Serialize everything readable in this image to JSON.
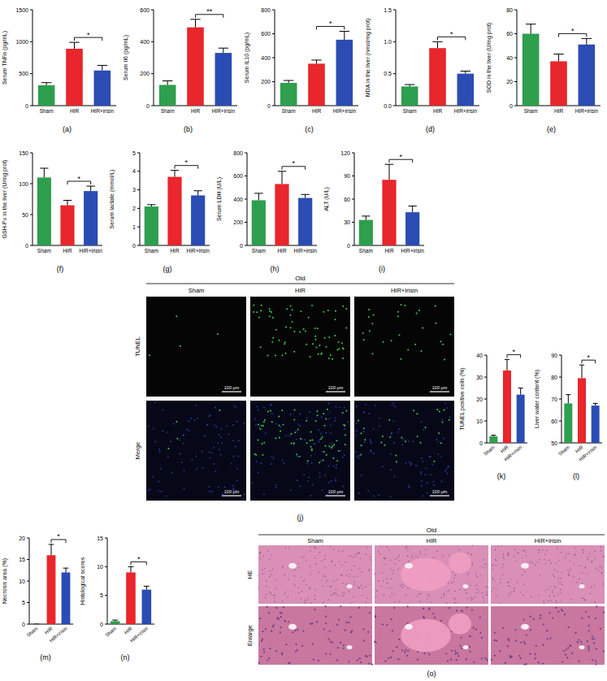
{
  "chart_data": [
    {
      "type": "bar",
      "caption": "(a)",
      "y_label": "Serum TNFα (pg/mL)",
      "categories": [
        "Sham",
        "HIR",
        "HIR+irisin"
      ],
      "values": [
        320,
        890,
        550
      ],
      "errors": [
        40,
        100,
        80
      ],
      "colors": [
        "#2e9e4f",
        "#e8262b",
        "#2b4cb3"
      ],
      "ylim": [
        0,
        1500
      ],
      "yticks": [
        0,
        500,
        1000,
        1500
      ],
      "annotations": [
        {
          "text": "*",
          "between": [
            1,
            2
          ]
        }
      ]
    },
    {
      "type": "bar",
      "caption": "(b)",
      "y_label": "Serum Il6 (pg/mL)",
      "categories": [
        "Sham",
        "HIR",
        "HIR+irisin"
      ],
      "values": [
        130,
        490,
        330
      ],
      "errors": [
        25,
        50,
        30
      ],
      "colors": [
        "#2e9e4f",
        "#e8262b",
        "#2b4cb3"
      ],
      "ylim": [
        0,
        600
      ],
      "yticks": [
        0,
        200,
        400,
        600
      ],
      "annotations": [
        {
          "text": "**",
          "between": [
            1,
            2
          ]
        }
      ]
    },
    {
      "type": "bar",
      "caption": "(c)",
      "y_label": "Serum IL10 (pg/mL)",
      "categories": [
        "Sham",
        "HIR",
        "HIR+irisin"
      ],
      "values": [
        190,
        350,
        550
      ],
      "errors": [
        20,
        30,
        70
      ],
      "colors": [
        "#2e9e4f",
        "#e8262b",
        "#2b4cb3"
      ],
      "ylim": [
        0,
        800
      ],
      "yticks": [
        0,
        200,
        400,
        600,
        800
      ],
      "annotations": [
        {
          "text": "*",
          "between": [
            1,
            2
          ]
        }
      ]
    },
    {
      "type": "bar",
      "caption": "(d)",
      "y_label": "MDA in the liver (nmol/mg prot)",
      "categories": [
        "Sham",
        "HIR",
        "HIR+irisin"
      ],
      "values": [
        0.3,
        0.9,
        0.5
      ],
      "errors": [
        0.03,
        0.1,
        0.04
      ],
      "colors": [
        "#2e9e4f",
        "#e8262b",
        "#2b4cb3"
      ],
      "ylim": [
        0,
        1.5
      ],
      "yticks": [
        {
          "value": 0,
          "label": "0.0"
        },
        0.5,
        {
          "value": 1,
          "label": "1.0"
        },
        1.5
      ],
      "annotations": [
        {
          "text": "*",
          "between": [
            1,
            2
          ]
        }
      ]
    },
    {
      "type": "bar",
      "caption": "(e)",
      "y_label": "SOD in the liver (U/mg prot)",
      "categories": [
        "Sham",
        "HIR",
        "HIR+irisin"
      ],
      "values": [
        60,
        37,
        51
      ],
      "errors": [
        8,
        6,
        5
      ],
      "colors": [
        "#2e9e4f",
        "#e8262b",
        "#2b4cb3"
      ],
      "ylim": [
        0,
        80
      ],
      "yticks": [
        0,
        20,
        40,
        60,
        80
      ],
      "annotations": [
        {
          "text": "*",
          "between": [
            1,
            2
          ]
        }
      ]
    },
    {
      "type": "bar",
      "caption": "(f)",
      "y_label": "GSH-Px in the liver (U/mg prot)",
      "categories": [
        "Sham",
        "HIR",
        "HIR+irisin"
      ],
      "values": [
        110,
        65,
        88
      ],
      "errors": [
        15,
        8,
        8
      ],
      "colors": [
        "#2e9e4f",
        "#e8262b",
        "#2b4cb3"
      ],
      "ylim": [
        0,
        150
      ],
      "yticks": [
        0,
        50,
        100,
        150
      ],
      "annotations": [
        {
          "text": "*",
          "between": [
            1,
            2
          ]
        }
      ]
    },
    {
      "type": "bar",
      "caption": "(g)",
      "y_label": "Serum lactate (mmol/L)",
      "categories": [
        "Sham",
        "HIR",
        "HIR+irisin"
      ],
      "values": [
        2.1,
        3.7,
        2.7
      ],
      "errors": [
        0.1,
        0.35,
        0.25
      ],
      "colors": [
        "#2e9e4f",
        "#e8262b",
        "#2b4cb3"
      ],
      "ylim": [
        0,
        5
      ],
      "yticks": [
        0,
        1,
        2,
        3,
        4,
        5
      ],
      "annotations": [
        {
          "text": "*",
          "between": [
            1,
            2
          ]
        }
      ]
    },
    {
      "type": "bar",
      "caption": "(h)",
      "y_label": "Serum LDH (U/L)",
      "categories": [
        "Sham",
        "HIR",
        "HIR+irisin"
      ],
      "values": [
        390,
        530,
        410
      ],
      "errors": [
        60,
        110,
        30
      ],
      "colors": [
        "#2e9e4f",
        "#e8262b",
        "#2b4cb3"
      ],
      "ylim": [
        0,
        800
      ],
      "yticks": [
        0,
        200,
        400,
        600,
        800
      ],
      "annotations": [
        {
          "text": "*",
          "between": [
            1,
            2
          ]
        }
      ]
    },
    {
      "type": "bar",
      "caption": "(i)",
      "y_label": "ALT (U/L)",
      "categories": [
        "Sham",
        "HIR",
        "HIR+irisin"
      ],
      "values": [
        33,
        85,
        43
      ],
      "errors": [
        5,
        20,
        8
      ],
      "colors": [
        "#2e9e4f",
        "#e8262b",
        "#2b4cb3"
      ],
      "ylim": [
        0,
        120
      ],
      "yticks": [
        0,
        30,
        60,
        90,
        120
      ],
      "annotations": [
        {
          "text": "*",
          "between": [
            1,
            2
          ]
        }
      ]
    },
    {
      "type": "bar",
      "caption": "(k)",
      "y_label": "TUNEL positive cells (%)",
      "categories": [
        "Sham",
        "HIR",
        "HIR+irisin"
      ],
      "values": [
        3,
        33,
        22
      ],
      "errors": [
        0.5,
        5,
        3
      ],
      "colors": [
        "#2e9e4f",
        "#e8262b",
        "#2b4cb3"
      ],
      "ylim": [
        0,
        40
      ],
      "yticks": [
        0,
        10,
        20,
        30,
        40
      ],
      "annotations": [
        {
          "text": "*",
          "between": [
            1,
            2
          ]
        }
      ]
    },
    {
      "type": "bar",
      "caption": "(l)",
      "y_label": "Liver water content (%)",
      "categories": [
        "Sham",
        "HIR",
        "HIR+irisin"
      ],
      "values": [
        68,
        79.5,
        67
      ],
      "errors": [
        4,
        6,
        1
      ],
      "colors": [
        "#2e9e4f",
        "#e8262b",
        "#2b4cb3"
      ],
      "ylim": [
        50,
        90
      ],
      "yticks": [
        50,
        60,
        70,
        80,
        90
      ],
      "annotations": [
        {
          "text": "*",
          "between": [
            1,
            2
          ]
        }
      ]
    },
    {
      "type": "bar",
      "caption": "(m)",
      "y_label": "Necrosis area (%)",
      "categories": [
        "Sham",
        "HIR",
        "HIR+irisin"
      ],
      "values": [
        0,
        16,
        12
      ],
      "errors": [
        0,
        2.5,
        1
      ],
      "colors": [
        "#2e9e4f",
        "#e8262b",
        "#2b4cb3"
      ],
      "ylim": [
        0,
        20
      ],
      "yticks": [
        0,
        5,
        10,
        15,
        20
      ],
      "annotations": [
        {
          "text": "*",
          "between": [
            1,
            2
          ]
        }
      ]
    },
    {
      "type": "bar",
      "caption": "(n)",
      "y_label": "Histological scores",
      "categories": [
        "Sham",
        "HIR",
        "HIR+irisin"
      ],
      "values": [
        0.5,
        9,
        6
      ],
      "errors": [
        0.2,
        1,
        0.6
      ],
      "colors": [
        "#2e9e4f",
        "#e8262b",
        "#2b4cb3"
      ],
      "ylim": [
        0,
        15
      ],
      "yticks": [
        0,
        5,
        10,
        15
      ],
      "annotations": [
        {
          "text": "*",
          "between": [
            1,
            2
          ]
        }
      ]
    }
  ],
  "panels": [
    {
      "caption": "(j)",
      "group": "Old",
      "columns": [
        "Sham",
        "HIR",
        "HIR+Irisin"
      ],
      "rows": [
        "TUNEL",
        "Merge"
      ],
      "scale_bar": "100 μm"
    },
    {
      "caption": "(o)",
      "group": "Old",
      "columns": [
        "Sham",
        "HIR",
        "HIR+irisin"
      ],
      "rows": [
        "HE",
        "Enlarge"
      ]
    }
  ]
}
